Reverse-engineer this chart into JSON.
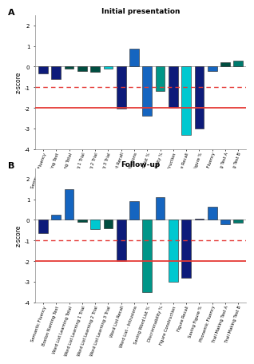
{
  "categories": [
    "Semantic Fluency",
    "Boston Naming Test",
    "Word List Learning Total",
    "Word List Learning 1 Trial",
    "Word List Learning 2 Trial",
    "Word List Learning 3 Trial",
    "Word List Recall",
    "Word List - Intrusions",
    "Saving Word List %",
    "Discriminability %",
    "Figure Construction",
    "Figure Recall",
    "Saving Figure %",
    "Phonemic Fluency",
    "Trail Making Test A",
    "Trail Making Test B"
  ],
  "panel_A_values": [
    -0.35,
    -0.6,
    -0.1,
    -0.2,
    -0.25,
    -0.1,
    -2.05,
    0.85,
    -2.4,
    -1.2,
    -2.0,
    -3.3,
    -3.0,
    -0.2,
    0.2,
    0.3
  ],
  "panel_B_values": [
    -0.65,
    0.25,
    1.5,
    -0.1,
    -0.45,
    -0.4,
    -2.0,
    0.9,
    -3.5,
    1.1,
    -3.0,
    -2.8,
    0.05,
    0.65,
    -0.2,
    -0.15
  ],
  "panel_A_colors": [
    "#0d1b7a",
    "#0d1b7a",
    "#004d40",
    "#004d40",
    "#004d40",
    "#00c8d0",
    "#0d1b7a",
    "#1565c0",
    "#1565c0",
    "#009688",
    "#0d1b7a",
    "#00c8d0",
    "#0d1b7a",
    "#1565c0",
    "#004d40",
    "#007b6e"
  ],
  "panel_B_colors": [
    "#0d1b7a",
    "#1565c0",
    "#1565c0",
    "#004d40",
    "#00c8d0",
    "#004d40",
    "#0d1b7a",
    "#1565c0",
    "#009688",
    "#1565c0",
    "#00c8d0",
    "#0d1b7a",
    "#0d1b7a",
    "#1565c0",
    "#1565c0",
    "#007b6e"
  ],
  "title_A": "Initial presentation",
  "title_B": "Follow-up",
  "label_A": "A",
  "label_B": "B",
  "ylabel": "z-score",
  "ylim_A": [
    -4,
    2.5
  ],
  "ylim_B": [
    -4,
    2.5
  ],
  "yticks_A": [
    -4,
    -3,
    -2,
    -1,
    0,
    1,
    2
  ],
  "yticks_B": [
    -4,
    -3,
    -2,
    -1,
    0,
    1,
    2
  ],
  "hline_solid": -2.0,
  "hline_dashed": -1.0,
  "hline_color": "#e53935",
  "hline_dashed_color": "#e53935"
}
